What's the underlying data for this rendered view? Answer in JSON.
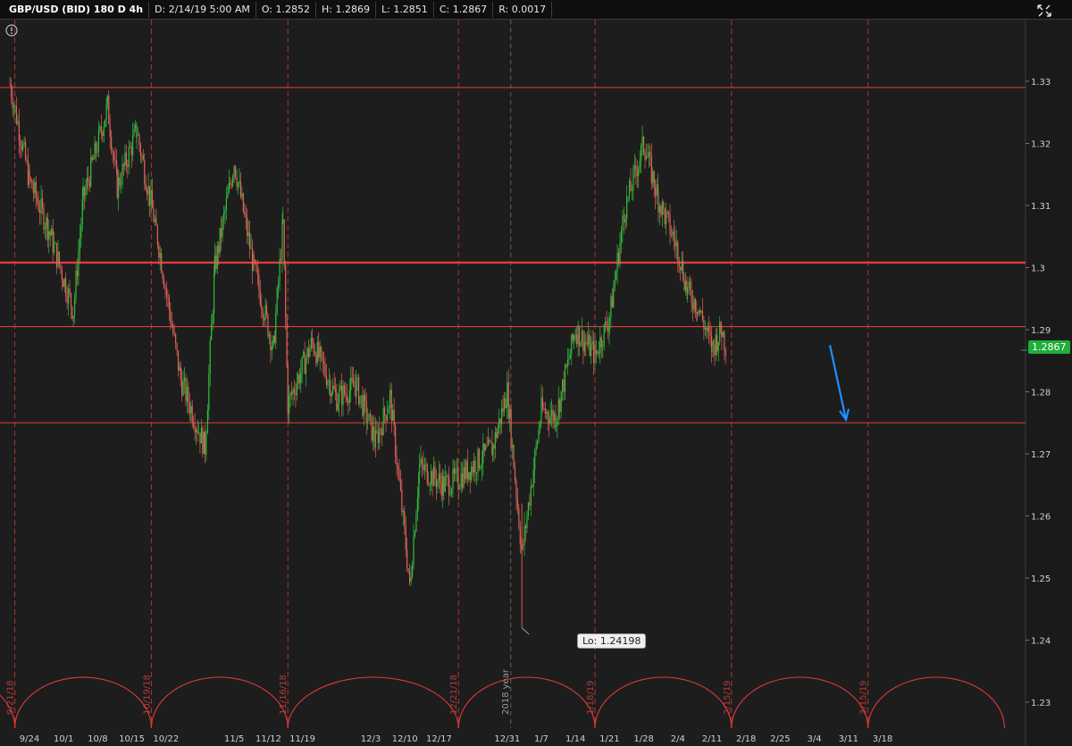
{
  "header": {
    "symbol": "GBP/USD (BID) 180 D 4h",
    "date": "D: 2/14/19 5:00 AM",
    "open": "O: 1.2852",
    "high": "H: 1.2869",
    "low": "L: 1.2851",
    "close": "C: 1.2867",
    "range": "R: 0.0017"
  },
  "last_price_tag": "1.2867",
  "low_tag": "Lo: 1.24198",
  "year_marker": "2018 year",
  "colors": {
    "up": "#2fbf3b",
    "down": "#e0635a",
    "level": "#e03a3a",
    "cycle": "#e03a3a",
    "arrow": "#1e90ff",
    "tag": "#1fae3c"
  },
  "chart_data": {
    "type": "candlestick",
    "title": "GBP/USD (BID) 180 D 4h",
    "ylim": [
      1.225,
      1.335
    ],
    "y_ticks": [
      "1.33",
      "1.32",
      "1.31",
      "1.3",
      "1.29",
      "1.28",
      "1.27",
      "1.26",
      "1.25",
      "1.24",
      "1.23"
    ],
    "x_ticks": [
      "9/24",
      "10/1",
      "10/8",
      "10/15",
      "10/22",
      "11/5",
      "11/12",
      "11/19",
      "12/3",
      "12/10",
      "12/17",
      "12/31",
      "1/7",
      "1/14",
      "1/21",
      "1/28",
      "2/4",
      "2/11",
      "2/18",
      "2/25",
      "3/4",
      "3/11",
      "3/18"
    ],
    "price_checkpoints": [
      {
        "x": "9/20",
        "y": 1.3295
      },
      {
        "x": "9/24",
        "y": 1.314
      },
      {
        "x": "9/28",
        "y": 1.306
      },
      {
        "x": "10/3",
        "y": 1.293
      },
      {
        "x": "10/5",
        "y": 1.311
      },
      {
        "x": "10/10",
        "y": 1.326
      },
      {
        "x": "10/12",
        "y": 1.313
      },
      {
        "x": "10/16",
        "y": 1.322
      },
      {
        "x": "10/20",
        "y": 1.306
      },
      {
        "x": "10/25",
        "y": 1.282
      },
      {
        "x": "10/30",
        "y": 1.271
      },
      {
        "x": "11/1",
        "y": 1.3
      },
      {
        "x": "11/5",
        "y": 1.317
      },
      {
        "x": "11/9",
        "y": 1.3
      },
      {
        "x": "11/13",
        "y": 1.287
      },
      {
        "x": "11/15",
        "y": 1.307
      },
      {
        "x": "11/16",
        "y": 1.278
      },
      {
        "x": "11/21",
        "y": 1.288
      },
      {
        "x": "11/26",
        "y": 1.279
      },
      {
        "x": "11/30",
        "y": 1.281
      },
      {
        "x": "12/4",
        "y": 1.272
      },
      {
        "x": "12/7",
        "y": 1.279
      },
      {
        "x": "12/11",
        "y": 1.249
      },
      {
        "x": "12/13",
        "y": 1.268
      },
      {
        "x": "12/18",
        "y": 1.265
      },
      {
        "x": "12/21",
        "y": 1.266
      },
      {
        "x": "12/28",
        "y": 1.271
      },
      {
        "x": "12/31",
        "y": 1.28
      },
      {
        "x": "1/3",
        "y": 1.254
      },
      {
        "x": "1/7",
        "y": 1.277
      },
      {
        "x": "1/10",
        "y": 1.276
      },
      {
        "x": "1/14",
        "y": 1.29
      },
      {
        "x": "1/18",
        "y": 1.286
      },
      {
        "x": "1/21",
        "y": 1.292
      },
      {
        "x": "1/24",
        "y": 1.309
      },
      {
        "x": "1/28",
        "y": 1.32
      },
      {
        "x": "1/31",
        "y": 1.311
      },
      {
        "x": "2/4",
        "y": 1.303
      },
      {
        "x": "2/6",
        "y": 1.296
      },
      {
        "x": "2/8",
        "y": 1.294
      },
      {
        "x": "2/11",
        "y": 1.287
      },
      {
        "x": "2/13",
        "y": 1.29
      },
      {
        "x": "2/14",
        "y": 1.2867
      }
    ],
    "last_price": 1.2867,
    "low": 1.24198,
    "horizontal_levels": [
      1.329,
      1.3008,
      1.2905,
      1.275
    ],
    "cycle_dates": [
      "9/21/18",
      "10/19/18",
      "11/16/18",
      "12/21/18",
      "1/18/19",
      "2/15/19",
      "3/15/19"
    ],
    "annotations": [
      "arrow pointing down from about 1.2875 toward 1.2755 after 2/14"
    ],
    "grid": false
  }
}
